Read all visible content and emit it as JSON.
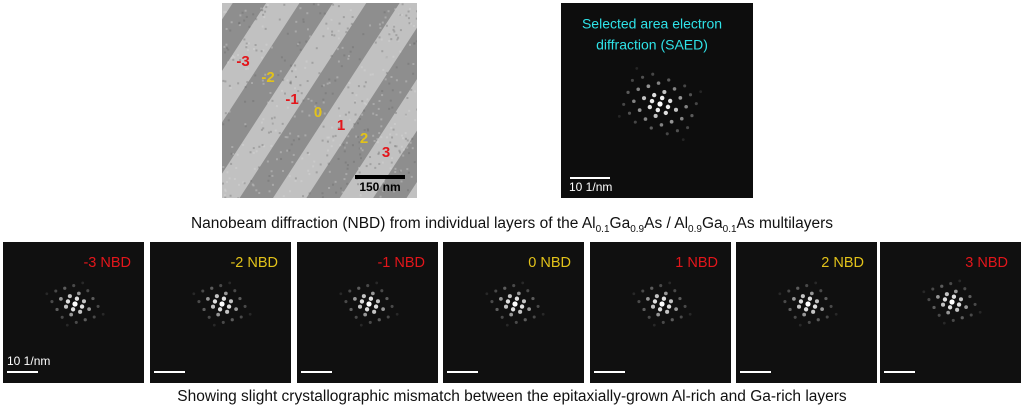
{
  "tem_image": {
    "layer_labels": [
      {
        "text": "-3",
        "color": "#e3161b"
      },
      {
        "text": "-2",
        "color": "#e2c21a"
      },
      {
        "text": "-1",
        "color": "#e3161b"
      },
      {
        "text": "0",
        "color": "#e2c21a"
      },
      {
        "text": "1",
        "color": "#e3161b"
      },
      {
        "text": "2",
        "color": "#e2c21a"
      },
      {
        "text": "3",
        "color": "#e3161b"
      }
    ],
    "scale_label": "150 nm"
  },
  "saed_image": {
    "title_lines": [
      "Selected area electron",
      "diffraction (SAED)"
    ],
    "scale_label": "10 1/nm"
  },
  "nbd_caption": {
    "parts": [
      "Nanobeam diffraction (NBD) from individual layers of the Al",
      "0.1",
      "Ga",
      "0.9",
      "As / Al",
      "0.9",
      "Ga",
      "0.1",
      "As multilayers"
    ]
  },
  "nbd_panels": {
    "scale_label": "10 1/nm",
    "panels": [
      {
        "label": "-3 NBD",
        "color": "#e3161b"
      },
      {
        "label": "-2 NBD",
        "color": "#e2c21a"
      },
      {
        "label": "-1 NBD",
        "color": "#e3161b"
      },
      {
        "label": "0 NBD",
        "color": "#e2c21a"
      },
      {
        "label": "1 NBD",
        "color": "#e3161b"
      },
      {
        "label": "2 NBD",
        "color": "#e2c21a"
      },
      {
        "label": "3 NBD",
        "color": "#e3161b"
      }
    ]
  },
  "footer_caption": "Showing slight crystallographic mismatch between the epitaxially-grown Al-rich and Ga-rich layers"
}
